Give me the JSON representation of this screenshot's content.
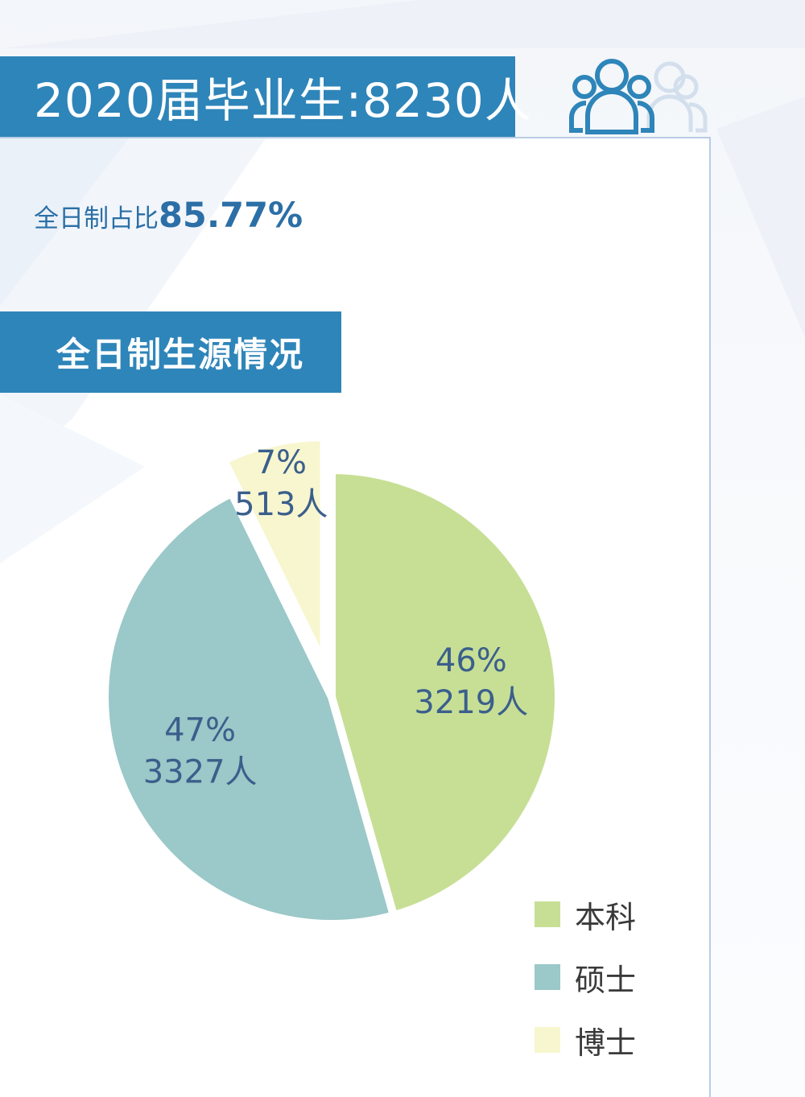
{
  "header": {
    "title": "2020届毕业生:8230人",
    "people_icon": "people-group-icon"
  },
  "summary": {
    "label": "全日制占比",
    "value": "85.77%"
  },
  "section": {
    "title": "全日制生源情况"
  },
  "colors": {
    "banner": "#2e85b9",
    "accent_text": "#2b6fa6"
  },
  "chart_data": {
    "type": "pie",
    "categories": [
      "本科",
      "硕士",
      "博士"
    ],
    "values": [
      3219,
      3327,
      513
    ],
    "percent_labels": [
      "46%",
      "47%",
      "7%"
    ],
    "count_labels": [
      "3219人",
      "3327人",
      "513人"
    ],
    "colors": [
      "#c7df95",
      "#9bc8c8",
      "#f7f6cf"
    ],
    "start_angle_deg": 0,
    "direction": "clockwise",
    "exploded": [
      false,
      false,
      true
    ],
    "legend": {
      "position": "bottom-right",
      "items": [
        "本科",
        "硕士",
        "博士"
      ]
    },
    "title": ""
  }
}
